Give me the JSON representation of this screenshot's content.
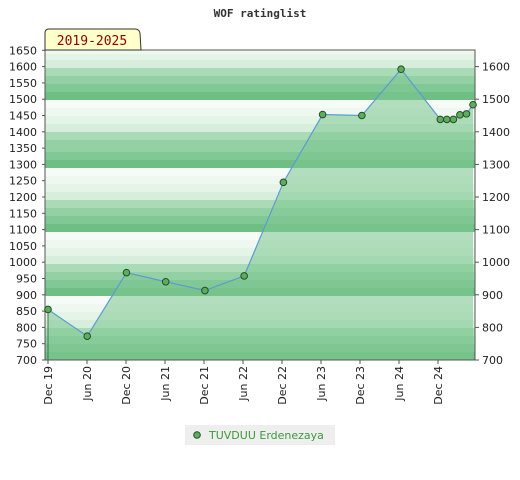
{
  "chart_data": {
    "type": "area",
    "title": "WOF ratinglist",
    "period_badge": "2019-2025",
    "x_tick_labels": [
      "Dec 19",
      "Jun 20",
      "Dec 20",
      "Jun 21",
      "Dec 21",
      "Jun 22",
      "Dec 22",
      "Jun 23",
      "Dec 23",
      "Jun 24",
      "Dec 24"
    ],
    "ylim": [
      700,
      1650
    ],
    "y_ticks_left": [
      700,
      750,
      800,
      850,
      900,
      950,
      1000,
      1050,
      1100,
      1150,
      1200,
      1250,
      1300,
      1350,
      1400,
      1450,
      1500,
      1550,
      1600,
      1650
    ],
    "y_ticks_right": [
      700,
      800,
      900,
      1000,
      1100,
      1200,
      1300,
      1400,
      1500,
      1600
    ],
    "grid": false,
    "legend_position": "bottom",
    "series": [
      {
        "name": "TUVDUU Erdenezaya",
        "x": [
          "2019-12",
          "2020-06",
          "2020-12",
          "2021-06",
          "2021-12",
          "2022-06",
          "2022-12",
          "2023-06",
          "2023-12",
          "2024-06",
          "2024-12",
          "2025-01",
          "2025-02",
          "2025-03",
          "2025-04",
          "2025-05"
        ],
        "values": [
          855,
          773,
          968,
          940,
          913,
          958,
          1245,
          1453,
          1450,
          1592,
          1438,
          1438,
          1438,
          1452,
          1455,
          1483
        ]
      }
    ],
    "colors": {
      "line": "#5b9bd5",
      "marker_fill": "#5ab05a",
      "marker_stroke": "#2a4a2a",
      "area_fill": "#7cc68f",
      "badge_bg": "#ffffcc",
      "legend_bg": "#eeeeee"
    }
  }
}
